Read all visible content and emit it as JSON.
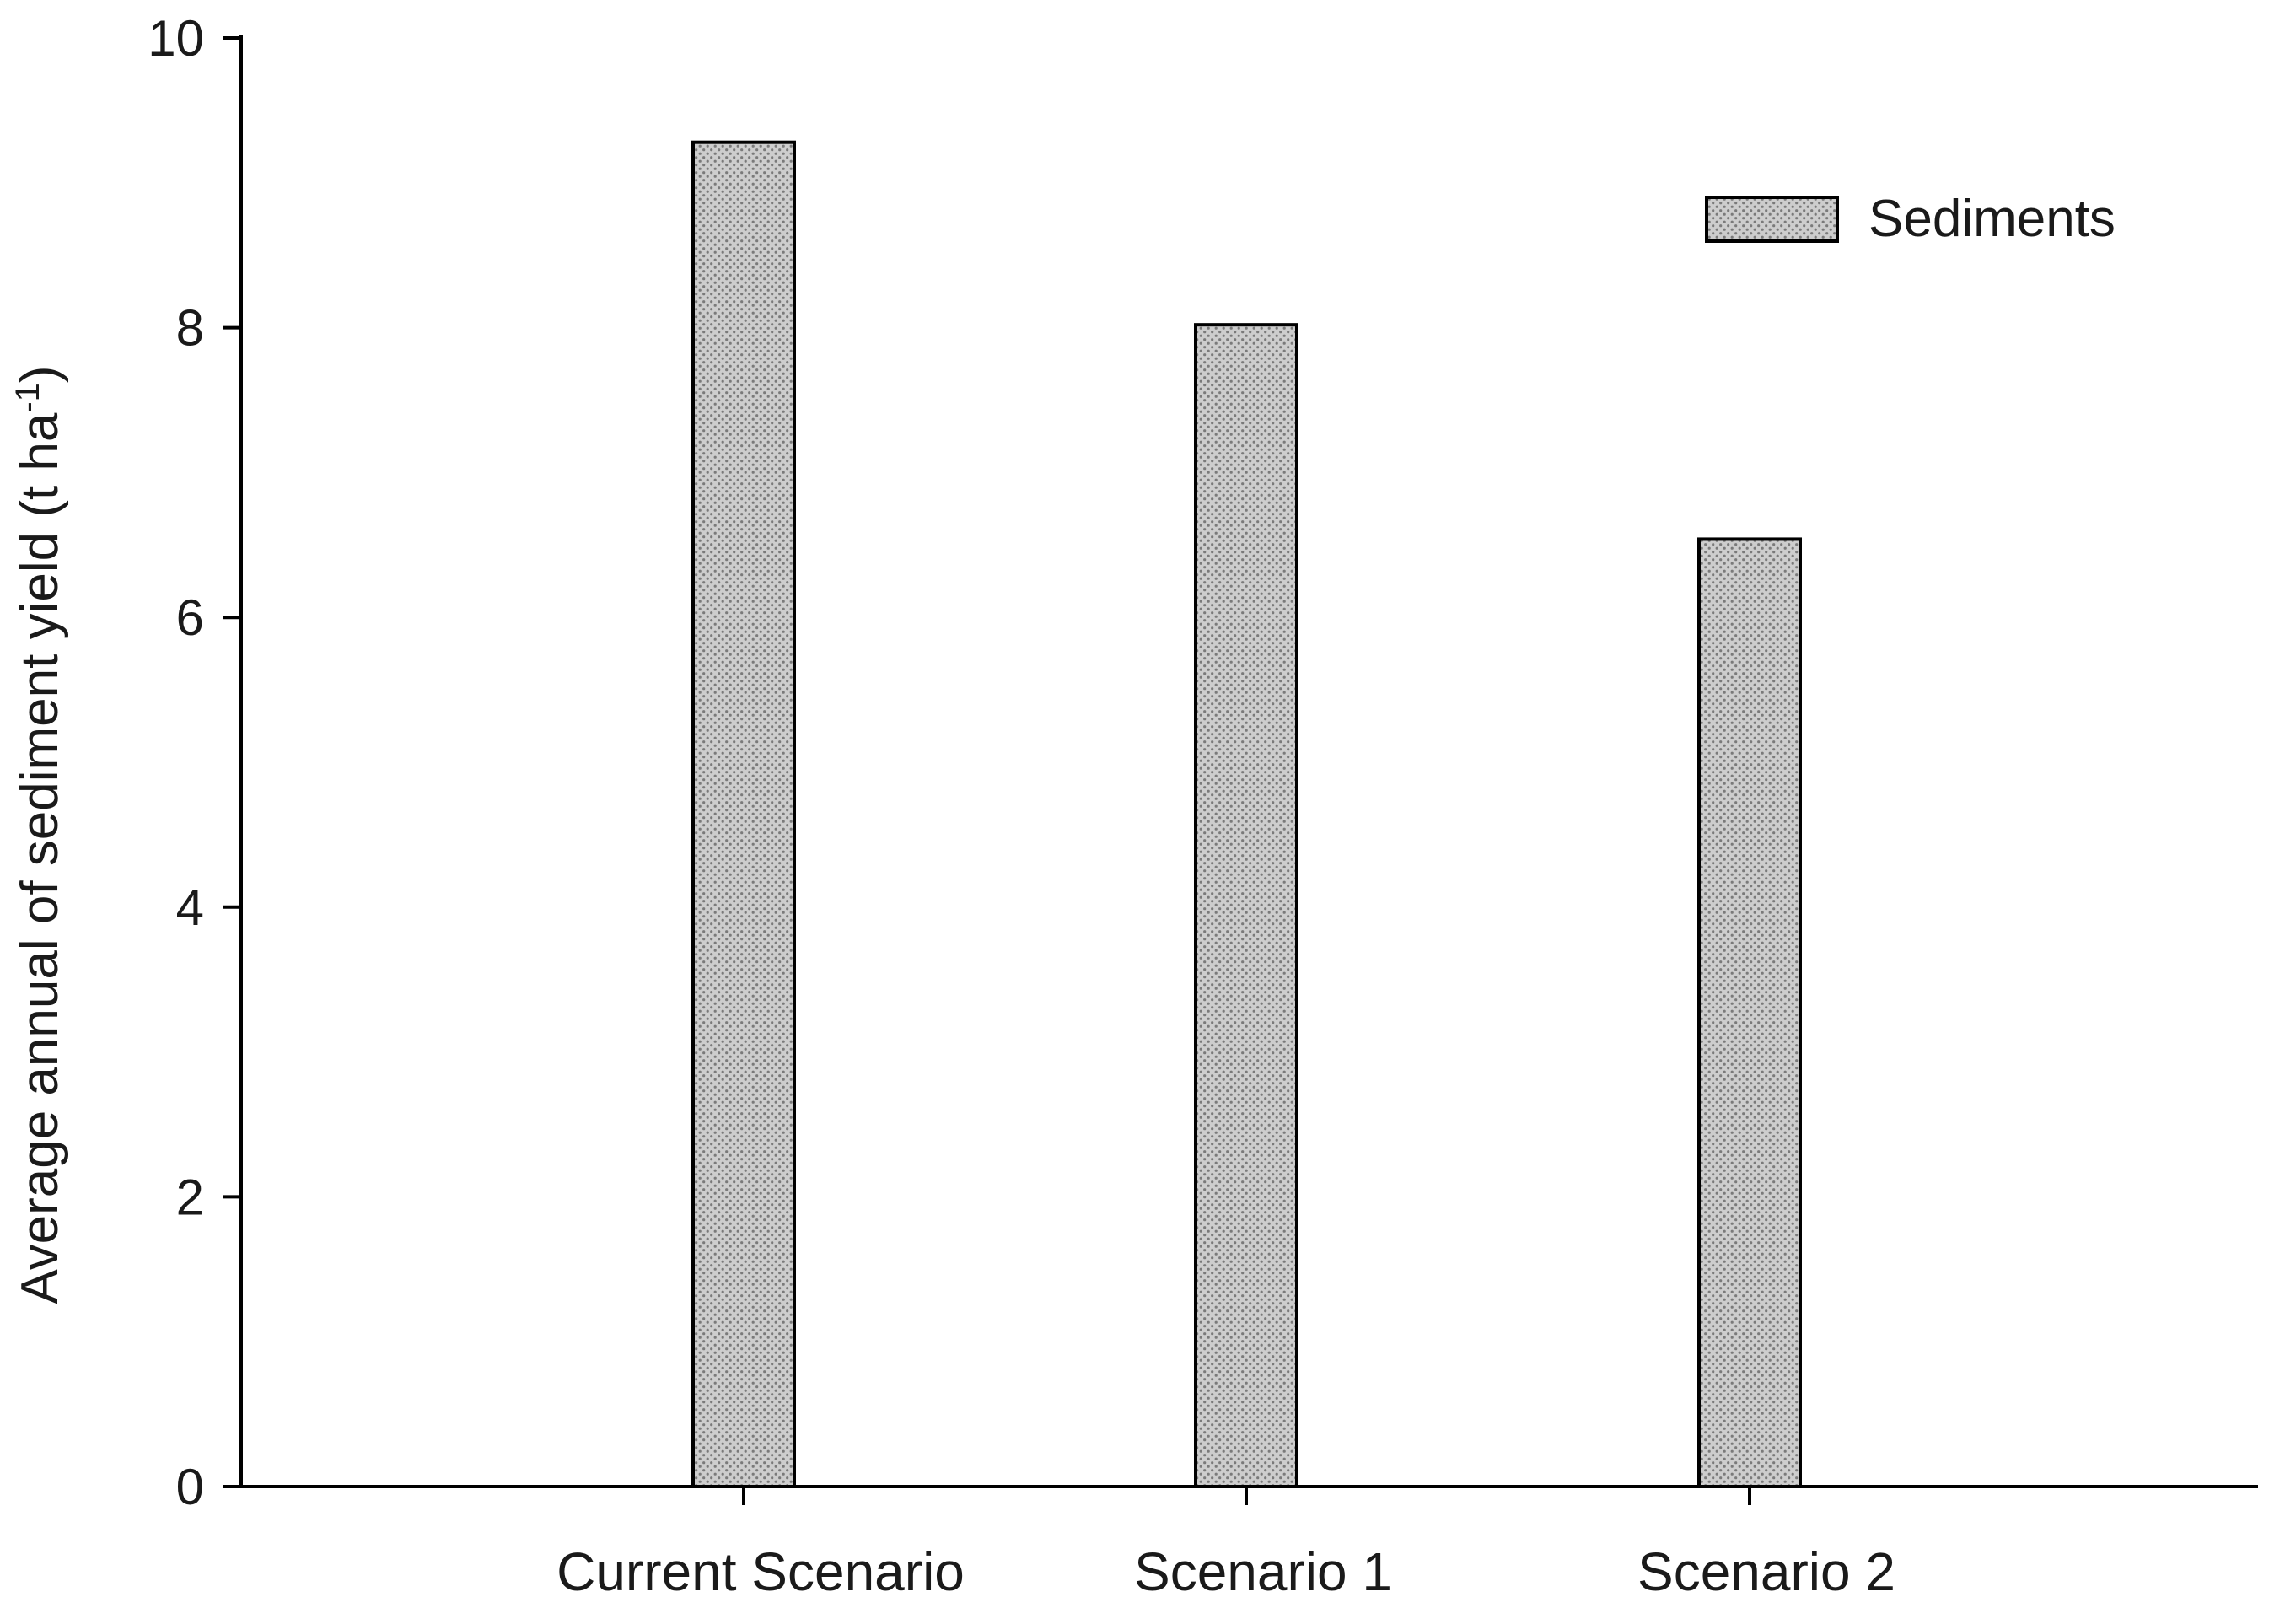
{
  "chart_data": {
    "type": "bar",
    "categories": [
      "Current Scenario",
      "Scenario 1",
      "Scenario 2"
    ],
    "series": [
      {
        "name": "Sediments",
        "values": [
          9.28,
          8.02,
          6.54
        ]
      }
    ],
    "xlabel": "",
    "ylabel": {
      "main": "Average annual of sediment yield (t ha",
      "superscript": "-1",
      "close": ")"
    },
    "ylim": [
      0,
      10
    ],
    "yticks": [
      0,
      2,
      4,
      6,
      8,
      10
    ],
    "grid": false,
    "legend_position": "top-right",
    "colors": {
      "bar_fill": "#c8c8c8",
      "bar_dot": "#7a7a7a",
      "bar_stroke": "#000000",
      "axis": "#000000"
    }
  }
}
